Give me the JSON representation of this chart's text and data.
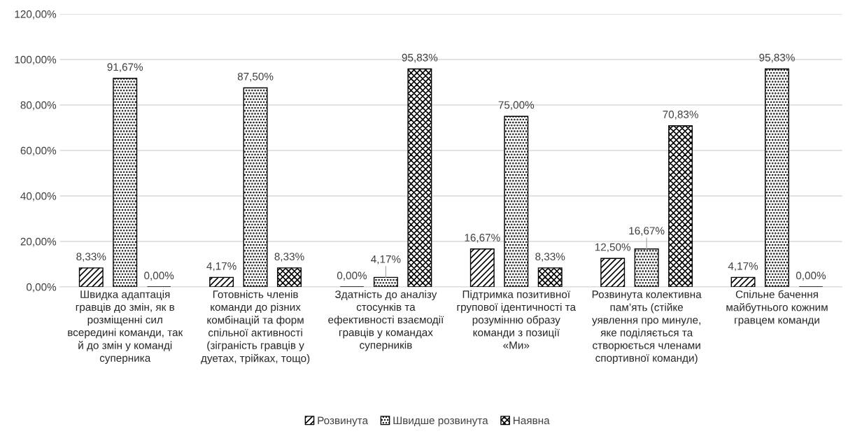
{
  "chart_data": {
    "type": "bar",
    "categories": [
      "Швидка адаптація\nгравців до змін, як в\nрозміщенні сил\nвсередині команди, так\nй до змін у команді\nсуперника",
      "Готовність членів\nкоманди до різних\nкомбінацій та форм\nспільної активності\n(зіграність гравців у\nдуетах, трійках, тощо)",
      "Здатність до аналізу\nстосунків та\nефективності взаємодії\nгравців у командах\nсуперників",
      "Підтримка позитивної\nгрупової ідентичності та\nрозумінню образу\nкоманди з позиції\n«Ми»",
      "Розвинута колективна\nпам’ять (стійке\nуявлення про минуле,\nяке поділяється та\nстворюється членами\nспортивної команди)",
      "Спільне бачення\nмайбутнього кожним\nгравцем команди"
    ],
    "series": [
      {
        "name": "Розвинута",
        "color": "#000000",
        "values": [
          8.33,
          4.17,
          0.0,
          16.67,
          12.5,
          4.17
        ],
        "value_labels": [
          "8,33%",
          "4,17%",
          "0,00%",
          "16,67%",
          "12,50%",
          "4,17%"
        ]
      },
      {
        "name": "Швидше розвинута",
        "color": "#000000",
        "values": [
          91.67,
          87.5,
          4.17,
          75.0,
          16.67,
          95.83
        ],
        "value_labels": [
          "91,67%",
          "87,50%",
          "4,17%",
          "75,00%",
          "16,67%",
          "95,83%"
        ]
      },
      {
        "name": "Наявна",
        "color": "#000000",
        "values": [
          0.0,
          8.33,
          95.83,
          8.33,
          70.83,
          0.0
        ],
        "value_labels": [
          "0,00%",
          "8,33%",
          "95,83%",
          "8,33%",
          "70,83%",
          "0,00%"
        ]
      }
    ],
    "ylim": [
      0,
      120
    ],
    "yticks": [
      {
        "value": 0,
        "label": "0,00%"
      },
      {
        "value": 20,
        "label": "20,00%"
      },
      {
        "value": 40,
        "label": "40,00%"
      },
      {
        "value": 60,
        "label": "60,00%"
      },
      {
        "value": 80,
        "label": "80,00%"
      },
      {
        "value": 100,
        "label": "100,00%"
      },
      {
        "value": 120,
        "label": "120,00%"
      }
    ],
    "grid": "y",
    "legend": "bottom"
  }
}
